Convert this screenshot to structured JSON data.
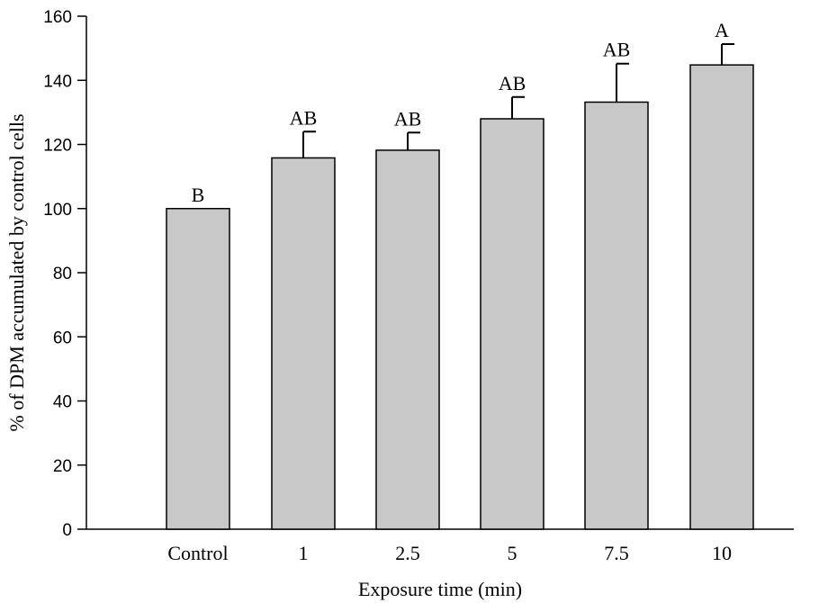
{
  "chart_data": {
    "type": "bar",
    "title": "",
    "xlabel": "Exposure time (min)",
    "ylabel": "% of DPM accumulated by control cells",
    "categories": [
      "Control",
      "1",
      "2.5",
      "5",
      "7.5",
      "10"
    ],
    "values": [
      100,
      115.8,
      118.2,
      128,
      133.2,
      144.8
    ],
    "errors": [
      0,
      8.2,
      5.5,
      6.8,
      12,
      6.5
    ],
    "significance": [
      "B",
      "AB",
      "AB",
      "AB",
      "AB",
      "A"
    ],
    "ylim": [
      0,
      160
    ],
    "yticks": [
      0,
      20,
      40,
      60,
      80,
      100,
      120,
      140,
      160
    ],
    "bar_color": "#c8c8c8",
    "grid": false,
    "legend": "none"
  }
}
